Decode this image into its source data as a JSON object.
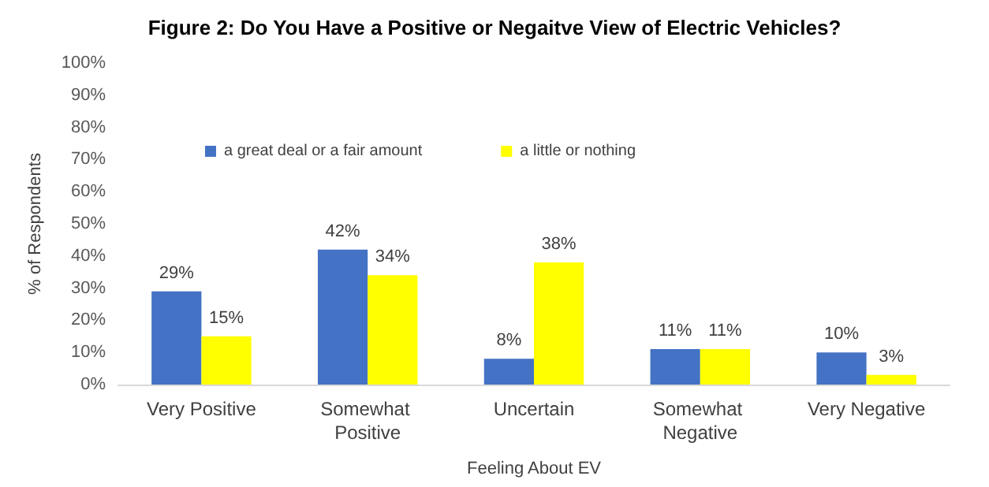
{
  "chart_data": {
    "type": "bar",
    "title": "Figure 2: Do You Have a Positive or Negaitve View of Electric Vehicles?",
    "xlabel": "Feeling About EV",
    "ylabel": "% of Respondents",
    "categories": [
      "Very Positive",
      "Somewhat Positive",
      "Uncertain",
      "Somewhat Negative",
      "Very Negative"
    ],
    "series": [
      {
        "name": "a great deal or a fair amount",
        "color": "#4472c4",
        "values": [
          29,
          42,
          8,
          11,
          10
        ],
        "value_labels": [
          "29%",
          "42%",
          "8%",
          "11%",
          "10%"
        ]
      },
      {
        "name": "a little or nothing",
        "color": "#ffff00",
        "values": [
          15,
          34,
          38,
          11,
          3
        ],
        "value_labels": [
          "15%",
          "34%",
          "38%",
          "11%",
          "3%"
        ]
      }
    ],
    "ylim": [
      0,
      100
    ],
    "yticks": [
      {
        "value": 0,
        "label": "0%"
      },
      {
        "value": 10,
        "label": "10%"
      },
      {
        "value": 20,
        "label": "20%"
      },
      {
        "value": 30,
        "label": "30%"
      },
      {
        "value": 40,
        "label": "40%"
      },
      {
        "value": 50,
        "label": "50%"
      },
      {
        "value": 60,
        "label": "60%"
      },
      {
        "value": 70,
        "label": "70%"
      },
      {
        "value": 80,
        "label": "80%"
      },
      {
        "value": 90,
        "label": "90%"
      },
      {
        "value": 100,
        "label": "100%"
      }
    ],
    "grid": false,
    "legend": "top left"
  }
}
